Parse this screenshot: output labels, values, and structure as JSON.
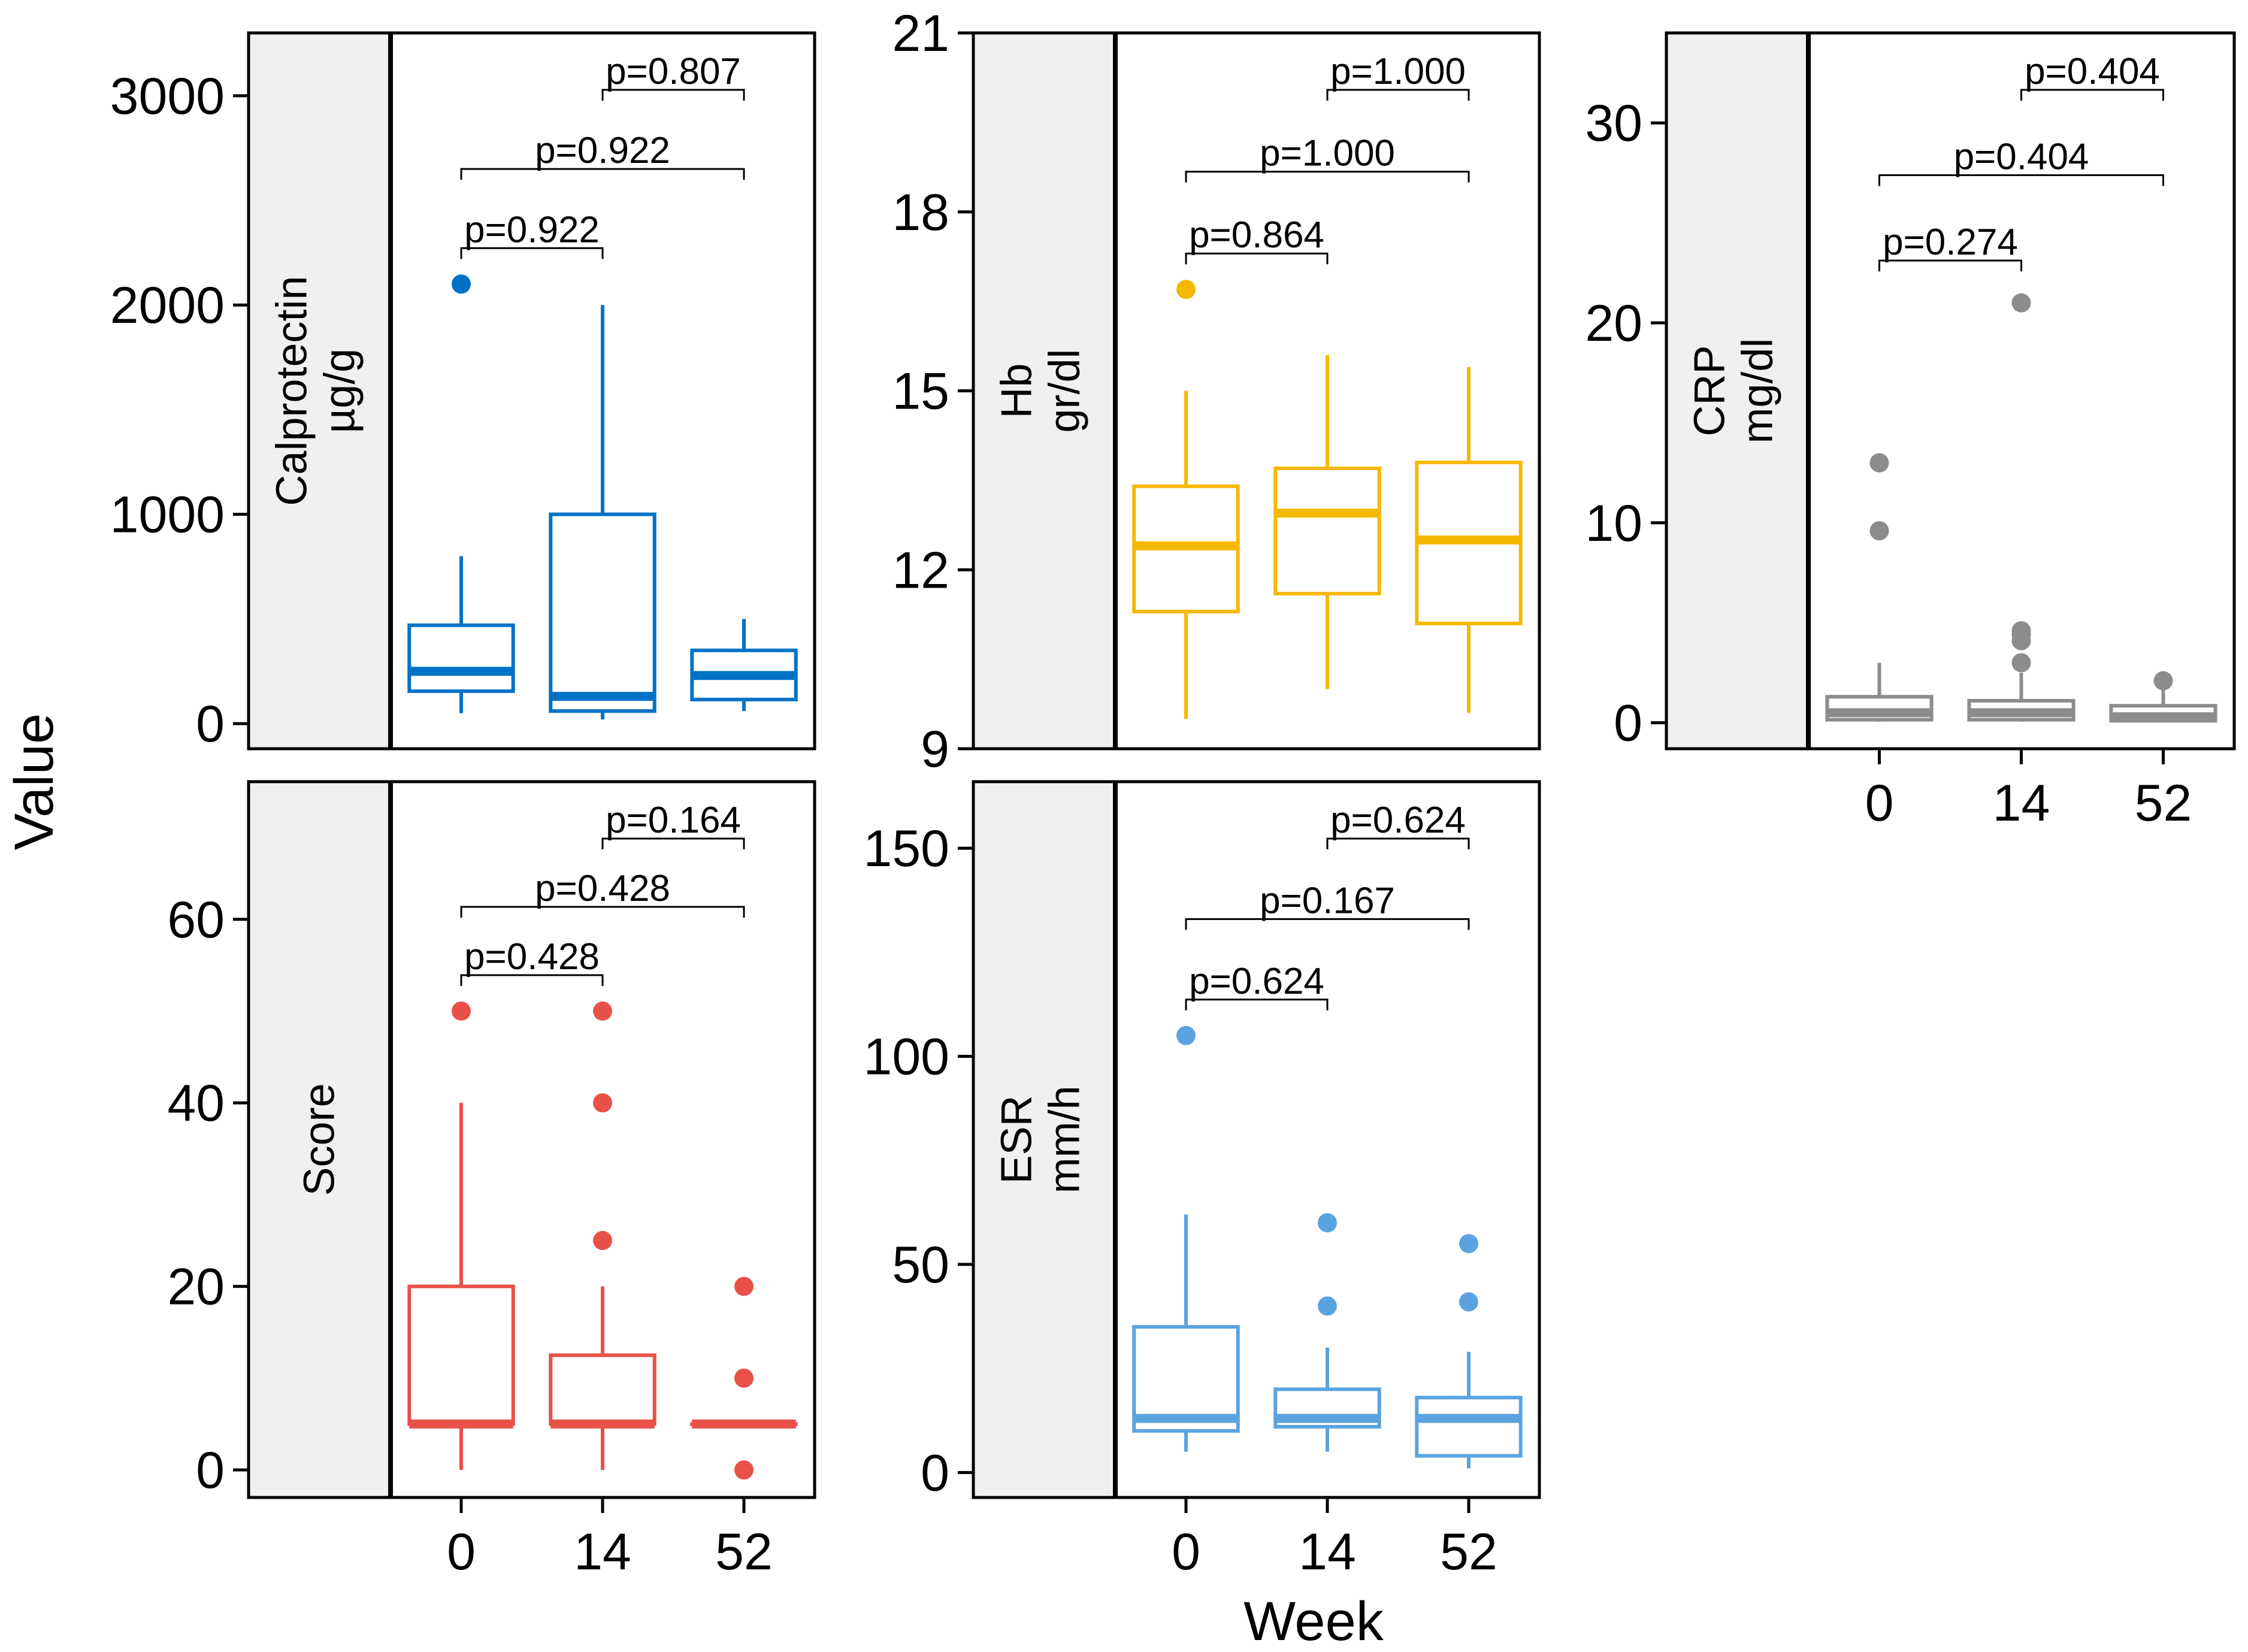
{
  "figure": {
    "ylabel": "Value",
    "xlabel": "Week"
  },
  "chart_data": [
    {
      "id": "calprotectin",
      "type": "box",
      "title": "Calprotectin",
      "unit": "µg/g",
      "color": "#0072C6",
      "categories": [
        "0",
        "14",
        "52"
      ],
      "ylim": [
        -120,
        3300
      ],
      "yticks": [
        0,
        1000,
        2000,
        3000
      ],
      "yticklabels": [
        "0",
        "1000",
        "2000",
        "3000"
      ],
      "show_x_ticks": false,
      "boxes": [
        {
          "category": "0",
          "whisker_low": 50,
          "q1": 155,
          "median": 250,
          "q3": 470,
          "whisker_high": 800,
          "outliers": [
            2100
          ]
        },
        {
          "category": "14",
          "whisker_low": 20,
          "q1": 60,
          "median": 130,
          "q3": 1000,
          "whisker_high": 2000,
          "outliers": []
        },
        {
          "category": "52",
          "whisker_low": 60,
          "q1": 115,
          "median": 230,
          "q3": 350,
          "whisker_high": 500,
          "outliers": []
        }
      ],
      "comparisons": [
        {
          "from": "0",
          "to": "14",
          "label": "p=0.922"
        },
        {
          "from": "0",
          "to": "52",
          "label": "p=0.922"
        },
        {
          "from": "14",
          "to": "52",
          "label": "p=0.807"
        }
      ]
    },
    {
      "id": "hb",
      "type": "box",
      "title": "Hb",
      "unit": "gr/dl",
      "color": "#F5B800",
      "categories": [
        "0",
        "14",
        "52"
      ],
      "ylim": [
        9,
        21
      ],
      "yticks": [
        9,
        12,
        15,
        18,
        21
      ],
      "yticklabels": [
        "9",
        "12",
        "15",
        "18",
        "21"
      ],
      "show_x_ticks": false,
      "boxes": [
        {
          "category": "0",
          "whisker_low": 9.5,
          "q1": 11.3,
          "median": 12.4,
          "q3": 13.4,
          "whisker_high": 15.0,
          "outliers": [
            16.7
          ]
        },
        {
          "category": "14",
          "whisker_low": 10.0,
          "q1": 11.6,
          "median": 12.95,
          "q3": 13.7,
          "whisker_high": 15.6,
          "outliers": []
        },
        {
          "category": "52",
          "whisker_low": 9.6,
          "q1": 11.1,
          "median": 12.5,
          "q3": 13.8,
          "whisker_high": 15.4,
          "outliers": []
        }
      ],
      "comparisons": [
        {
          "from": "0",
          "to": "14",
          "label": "p=0.864"
        },
        {
          "from": "0",
          "to": "52",
          "label": "p=1.000"
        },
        {
          "from": "14",
          "to": "52",
          "label": "p=1.000"
        }
      ]
    },
    {
      "id": "crp",
      "type": "box",
      "title": "CRP",
      "unit": "mg/dl",
      "color": "#8C8C8C",
      "categories": [
        "0",
        "14",
        "52"
      ],
      "ylim": [
        -1.3,
        34.5
      ],
      "yticks": [
        0,
        10,
        20,
        30
      ],
      "yticklabels": [
        "0",
        "10",
        "20",
        "30"
      ],
      "show_x_ticks": true,
      "boxes": [
        {
          "category": "0",
          "whisker_low": 0.05,
          "q1": 0.15,
          "median": 0.5,
          "q3": 1.3,
          "whisker_high": 3.0,
          "outliers": [
            9.6,
            13.0
          ]
        },
        {
          "category": "14",
          "whisker_low": 0.05,
          "q1": 0.15,
          "median": 0.5,
          "q3": 1.1,
          "whisker_high": 2.5,
          "outliers": [
            3.0,
            4.1,
            4.4,
            4.6,
            21.0
          ]
        },
        {
          "category": "52",
          "whisker_low": 0.05,
          "q1": 0.1,
          "median": 0.3,
          "q3": 0.85,
          "whisker_high": 2.0,
          "outliers": [
            2.1
          ]
        }
      ],
      "comparisons": [
        {
          "from": "0",
          "to": "14",
          "label": "p=0.274"
        },
        {
          "from": "0",
          "to": "52",
          "label": "p=0.404"
        },
        {
          "from": "14",
          "to": "52",
          "label": "p=0.404"
        }
      ]
    },
    {
      "id": "score",
      "type": "box",
      "title": "Score",
      "unit": "",
      "color": "#E8514A",
      "categories": [
        "0",
        "14",
        "52"
      ],
      "ylim": [
        -3,
        75
      ],
      "yticks": [
        0,
        20,
        40,
        60
      ],
      "yticklabels": [
        "0",
        "20",
        "40",
        "60"
      ],
      "show_x_ticks": true,
      "boxes": [
        {
          "category": "0",
          "whisker_low": 0,
          "q1": 5,
          "median": 5,
          "q3": 20,
          "whisker_high": 40,
          "outliers": [
            50
          ]
        },
        {
          "category": "14",
          "whisker_low": 0,
          "q1": 5,
          "median": 5,
          "q3": 12.5,
          "whisker_high": 20,
          "outliers": [
            25,
            40,
            50
          ]
        },
        {
          "category": "52",
          "whisker_low": 5,
          "q1": 5,
          "median": 5,
          "q3": 5,
          "whisker_high": 5,
          "outliers": [
            0,
            10,
            20
          ]
        }
      ],
      "comparisons": [
        {
          "from": "0",
          "to": "14",
          "label": "p=0.428"
        },
        {
          "from": "0",
          "to": "52",
          "label": "p=0.428"
        },
        {
          "from": "14",
          "to": "52",
          "label": "p=0.164"
        }
      ]
    },
    {
      "id": "esr",
      "type": "box",
      "title": "ESR",
      "unit": "mm/h",
      "color": "#5BA3E0",
      "categories": [
        "0",
        "14",
        "52"
      ],
      "ylim": [
        -6,
        166
      ],
      "yticks": [
        0,
        50,
        100,
        150
      ],
      "yticklabels": [
        "0",
        "50",
        "100",
        "150"
      ],
      "show_x_ticks": true,
      "boxes": [
        {
          "category": "0",
          "whisker_low": 5,
          "q1": 10,
          "median": 13,
          "q3": 35,
          "whisker_high": 62,
          "outliers": [
            105
          ]
        },
        {
          "category": "14",
          "whisker_low": 5,
          "q1": 11,
          "median": 13,
          "q3": 20,
          "whisker_high": 30,
          "outliers": [
            40,
            60
          ]
        },
        {
          "category": "52",
          "whisker_low": 1,
          "q1": 4,
          "median": 13,
          "q3": 18,
          "whisker_high": 29,
          "outliers": [
            41,
            55
          ]
        }
      ],
      "comparisons": [
        {
          "from": "0",
          "to": "14",
          "label": "p=0.624"
        },
        {
          "from": "0",
          "to": "52",
          "label": "p=0.167"
        },
        {
          "from": "14",
          "to": "52",
          "label": "p=0.624"
        }
      ]
    }
  ]
}
